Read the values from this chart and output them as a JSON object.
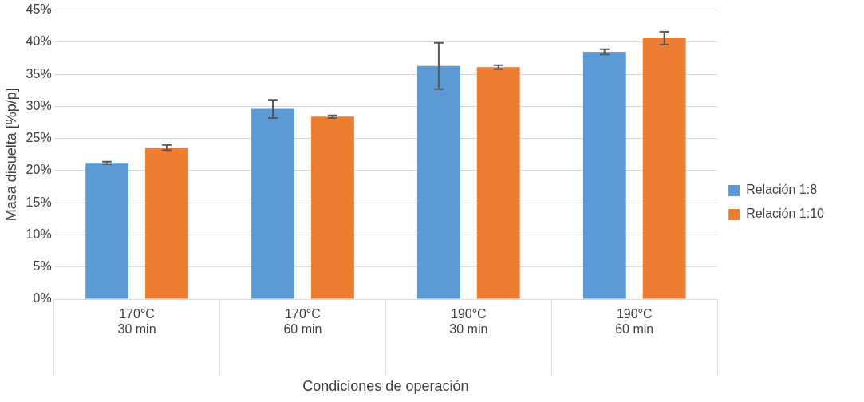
{
  "chart_data": {
    "type": "bar",
    "xlabel": "Condiciones de operación",
    "ylabel": "Masa disuelta [%p/p]",
    "categories": [
      "170°C\n30 min",
      "170°C\n60 min",
      "190°C\n30 min",
      "190°C\n60 min"
    ],
    "series": [
      {
        "name": "Relación 1:8",
        "color": "#5b9bd5",
        "values": [
          21.2,
          29.6,
          36.3,
          38.5
        ],
        "errors": [
          0.2,
          1.4,
          3.6,
          0.4
        ]
      },
      {
        "name": "Relación 1:10",
        "color": "#ed7d31",
        "values": [
          23.6,
          28.4,
          36.1,
          40.6
        ],
        "errors": [
          0.4,
          0.2,
          0.3,
          1.0
        ]
      }
    ],
    "ylim": [
      0,
      45
    ],
    "yticks": [
      {
        "value": 0,
        "label": "0%"
      },
      {
        "value": 5,
        "label": "5%"
      },
      {
        "value": 10,
        "label": "10%"
      },
      {
        "value": 15,
        "label": "15%"
      },
      {
        "value": 20,
        "label": "20%"
      },
      {
        "value": 25,
        "label": "25%"
      },
      {
        "value": 30,
        "label": "30%"
      },
      {
        "value": 35,
        "label": "35%"
      },
      {
        "value": 40,
        "label": "40%"
      },
      {
        "value": 45,
        "label": "45%"
      }
    ],
    "grid": "y",
    "legend": "right"
  }
}
